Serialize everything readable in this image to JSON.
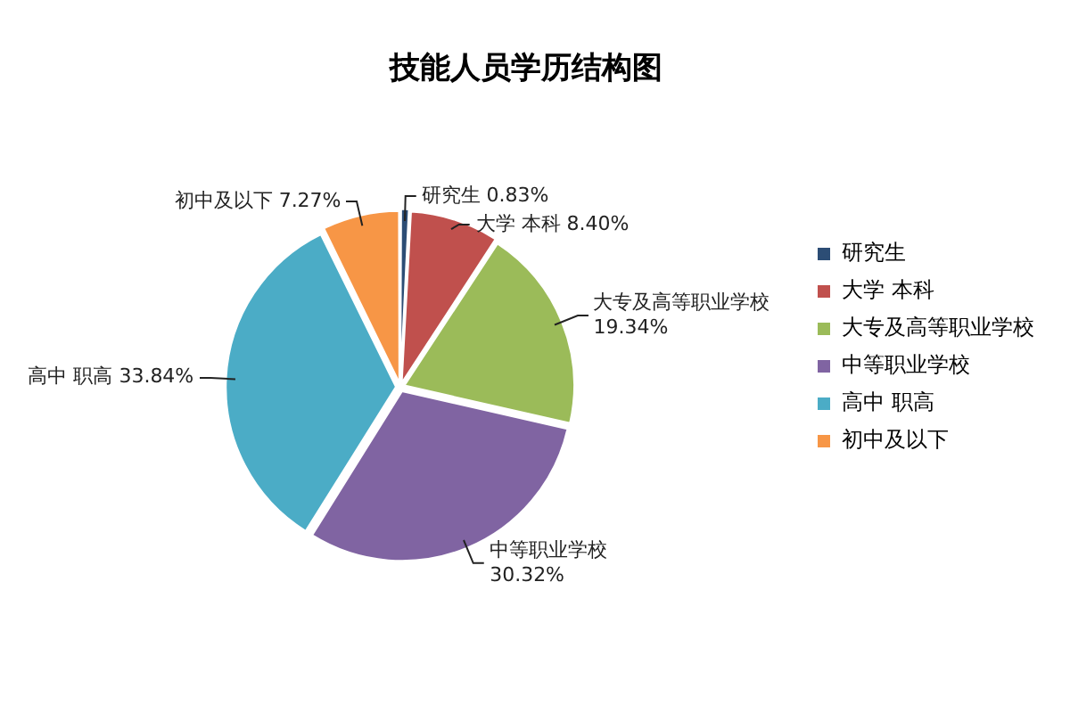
{
  "chart_data": {
    "type": "pie",
    "title": "技能人员学历结构图",
    "categories": [
      "研究生",
      "大学 本科",
      "大专及高等职业学校",
      "中等职业学校",
      "高中 职高",
      "初中及以下"
    ],
    "values": [
      0.83,
      8.4,
      19.34,
      30.32,
      33.84,
      7.27
    ],
    "colors": [
      "#2c4d75",
      "#c0504d",
      "#9bbb59",
      "#8064a2",
      "#4bacc6",
      "#f79646"
    ],
    "value_labels": [
      "0.83%",
      "8.40%",
      "19.34%",
      "30.32%",
      "33.84%",
      "7.27%"
    ],
    "legend": "right"
  }
}
